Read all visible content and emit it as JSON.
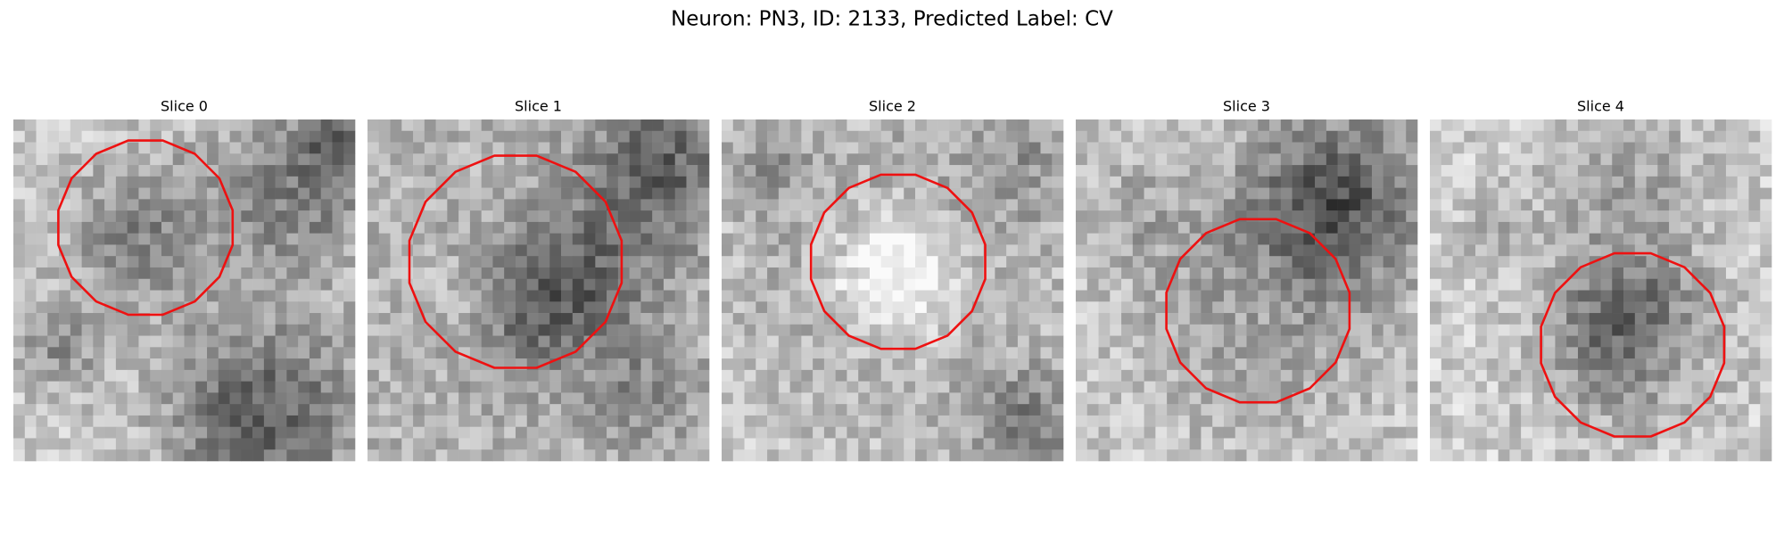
{
  "title": "Neuron: PN3, ID: 2133, Predicted Label: CV",
  "panels": [
    {
      "title": "Slice 0"
    },
    {
      "title": "Slice 1"
    },
    {
      "title": "Slice 2"
    },
    {
      "title": "Slice 3"
    },
    {
      "title": "Slice 4"
    }
  ]
}
